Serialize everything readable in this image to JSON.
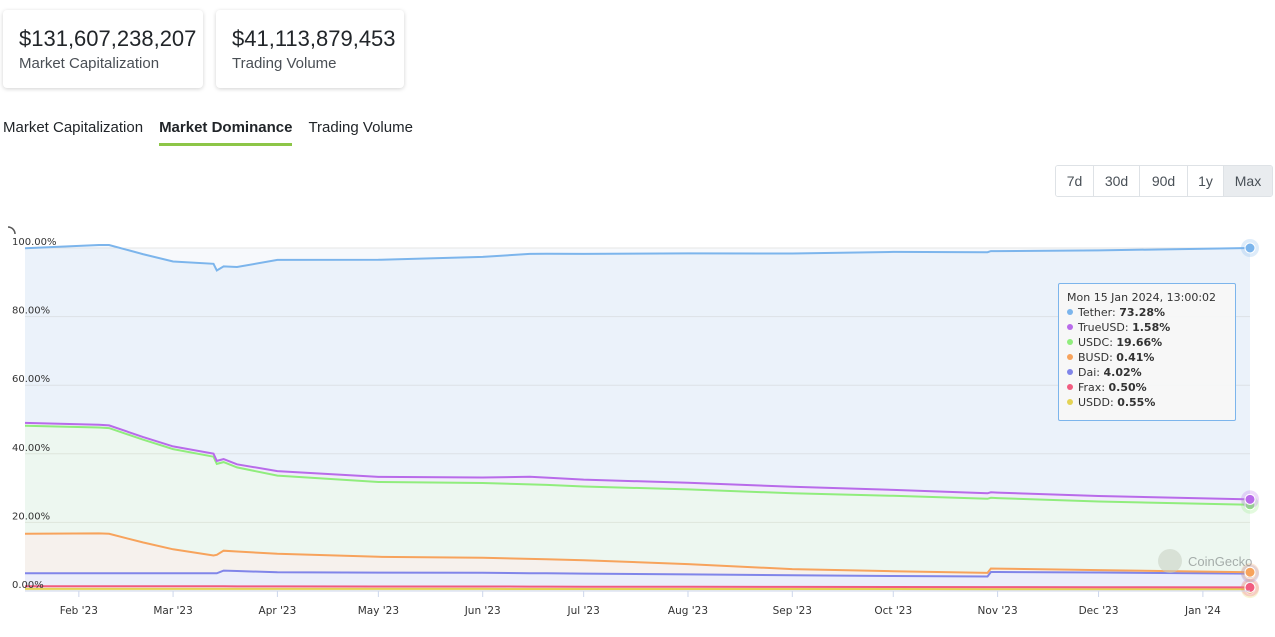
{
  "stats": {
    "market_cap_value": "$131,607,238,207",
    "market_cap_label": "Market Capitalization",
    "volume_value": "$41,113,879,453",
    "volume_label": "Trading Volume"
  },
  "tabs": [
    {
      "label": "Market Capitalization",
      "active": false
    },
    {
      "label": "Market Dominance",
      "active": true
    },
    {
      "label": "Trading Volume",
      "active": false
    }
  ],
  "ranges": [
    {
      "label": "7d",
      "active": false
    },
    {
      "label": "30d",
      "active": false
    },
    {
      "label": "90d",
      "active": false
    },
    {
      "label": "1y",
      "active": false
    },
    {
      "label": "Max",
      "active": true
    }
  ],
  "tooltip": {
    "date": "Mon 15 Jan 2024, 13:00:02",
    "rows": [
      {
        "name": "Tether",
        "value": "73.28%",
        "color": "#7cb5ec"
      },
      {
        "name": "TrueUSD",
        "value": "1.58%",
        "color": "#b86bea"
      },
      {
        "name": "USDC",
        "value": "19.66%",
        "color": "#90ed7d"
      },
      {
        "name": "BUSD",
        "value": "0.41%",
        "color": "#f7a35c"
      },
      {
        "name": "Dai",
        "value": "4.02%",
        "color": "#8085e9"
      },
      {
        "name": "Frax",
        "value": "0.50%",
        "color": "#f15c80"
      },
      {
        "name": "USDD",
        "value": "0.55%",
        "color": "#e4d354"
      }
    ]
  },
  "watermark": {
    "text": "CoinGecko"
  },
  "chart_data": {
    "type": "area",
    "stacked": true,
    "ylim": [
      0,
      100
    ],
    "y_ticks": [
      {
        "value": 0,
        "label": "0.00%"
      },
      {
        "value": 20,
        "label": "20.00%"
      },
      {
        "value": 40,
        "label": "40.00%"
      },
      {
        "value": 60,
        "label": "60.00%"
      },
      {
        "value": 80,
        "label": "80.00%"
      },
      {
        "value": 100,
        "label": "100.00%"
      }
    ],
    "x_range": [
      "2023-01-16",
      "2024-01-15"
    ],
    "x_ticks": [
      {
        "date": "2023-02-01",
        "label": "Feb '23"
      },
      {
        "date": "2023-03-01",
        "label": "Mar '23"
      },
      {
        "date": "2023-04-01",
        "label": "Apr '23"
      },
      {
        "date": "2023-05-01",
        "label": "May '23"
      },
      {
        "date": "2023-06-01",
        "label": "Jun '23"
      },
      {
        "date": "2023-07-01",
        "label": "Jul '23"
      },
      {
        "date": "2023-08-01",
        "label": "Aug '23"
      },
      {
        "date": "2023-09-01",
        "label": "Sep '23"
      },
      {
        "date": "2023-10-01",
        "label": "Oct '23"
      },
      {
        "date": "2023-11-01",
        "label": "Nov '23"
      },
      {
        "date": "2023-12-01",
        "label": "Dec '23"
      },
      {
        "date": "2024-01-01",
        "label": "Jan '24"
      }
    ],
    "grid": true,
    "stack_order_bottom_to_top": [
      "USDD",
      "Frax",
      "Dai",
      "BUSD",
      "USDC",
      "TrueUSD",
      "Tether"
    ],
    "series": [
      {
        "name": "USDD",
        "color": "#e4d354",
        "points": [
          [
            "2023-01-16",
            0.6
          ],
          [
            "2023-06-01",
            0.6
          ],
          [
            "2024-01-15",
            0.55
          ]
        ]
      },
      {
        "name": "Frax",
        "color": "#f15c80",
        "points": [
          [
            "2023-01-16",
            0.8
          ],
          [
            "2023-06-01",
            0.7
          ],
          [
            "2024-01-15",
            0.5
          ]
        ]
      },
      {
        "name": "Dai",
        "color": "#8085e9",
        "points": [
          [
            "2023-01-16",
            3.8
          ],
          [
            "2023-03-14",
            3.8
          ],
          [
            "2023-03-16",
            4.6
          ],
          [
            "2023-04-01",
            4.1
          ],
          [
            "2023-06-01",
            4.0
          ],
          [
            "2023-08-01",
            3.6
          ],
          [
            "2023-10-01",
            3.2
          ],
          [
            "2023-10-29",
            3.1
          ],
          [
            "2023-10-30",
            4.4
          ],
          [
            "2023-12-01",
            4.3
          ],
          [
            "2024-01-15",
            4.02
          ]
        ]
      },
      {
        "name": "BUSD",
        "color": "#f7a35c",
        "points": [
          [
            "2023-01-16",
            11.5
          ],
          [
            "2023-02-07",
            11.6
          ],
          [
            "2023-02-10",
            11.5
          ],
          [
            "2023-02-20",
            9.0
          ],
          [
            "2023-03-01",
            7.0
          ],
          [
            "2023-03-13",
            5.2
          ],
          [
            "2023-03-16",
            5.8
          ],
          [
            "2023-04-01",
            5.4
          ],
          [
            "2023-05-01",
            4.6
          ],
          [
            "2023-06-01",
            4.4
          ],
          [
            "2023-07-01",
            3.9
          ],
          [
            "2023-08-01",
            3.0
          ],
          [
            "2023-09-01",
            1.8
          ],
          [
            "2023-10-01",
            1.4
          ],
          [
            "2023-11-01",
            1.0
          ],
          [
            "2023-12-01",
            0.7
          ],
          [
            "2024-01-15",
            0.41
          ]
        ]
      },
      {
        "name": "USDC",
        "color": "#90ed7d",
        "points": [
          [
            "2023-01-16",
            31.5
          ],
          [
            "2023-02-10",
            30.8
          ],
          [
            "2023-03-01",
            29.2
          ],
          [
            "2023-03-13",
            28.8
          ],
          [
            "2023-03-14",
            26.5
          ],
          [
            "2023-03-20",
            24.5
          ],
          [
            "2023-04-01",
            22.8
          ],
          [
            "2023-05-01",
            21.8
          ],
          [
            "2023-06-01",
            21.8
          ],
          [
            "2023-06-20",
            21.7
          ],
          [
            "2023-07-01",
            21.5
          ],
          [
            "2023-08-01",
            21.8
          ],
          [
            "2023-09-01",
            22.1
          ],
          [
            "2023-10-01",
            22.0
          ],
          [
            "2023-10-29",
            21.6
          ],
          [
            "2023-10-30",
            20.6
          ],
          [
            "2023-12-01",
            20.0
          ],
          [
            "2024-01-15",
            19.66
          ]
        ]
      },
      {
        "name": "TrueUSD",
        "color": "#b86bea",
        "points": [
          [
            "2023-01-16",
            0.8
          ],
          [
            "2023-03-01",
            0.8
          ],
          [
            "2023-03-20",
            0.9
          ],
          [
            "2023-04-01",
            1.3
          ],
          [
            "2023-05-01",
            1.5
          ],
          [
            "2023-06-01",
            1.6
          ],
          [
            "2023-06-15",
            2.2
          ],
          [
            "2023-07-01",
            2.0
          ],
          [
            "2023-08-01",
            1.9
          ],
          [
            "2023-09-01",
            1.9
          ],
          [
            "2023-10-01",
            1.7
          ],
          [
            "2023-11-01",
            1.6
          ],
          [
            "2023-12-01",
            1.6
          ],
          [
            "2024-01-15",
            1.58
          ]
        ]
      },
      {
        "name": "Tether",
        "color": "#7cb5ec",
        "points": [
          [
            "2023-01-16",
            50.9
          ],
          [
            "2023-03-01",
            53.9
          ],
          [
            "2023-03-14",
            55.5
          ],
          [
            "2023-04-01",
            61.6
          ],
          [
            "2023-05-01",
            63.3
          ],
          [
            "2023-06-01",
            64.3
          ],
          [
            "2023-07-01",
            65.8
          ],
          [
            "2023-08-01",
            66.9
          ],
          [
            "2023-09-01",
            68.0
          ],
          [
            "2023-10-01",
            69.4
          ],
          [
            "2023-11-01",
            70.4
          ],
          [
            "2023-12-01",
            71.6
          ],
          [
            "2024-01-15",
            73.28
          ]
        ]
      }
    ]
  }
}
